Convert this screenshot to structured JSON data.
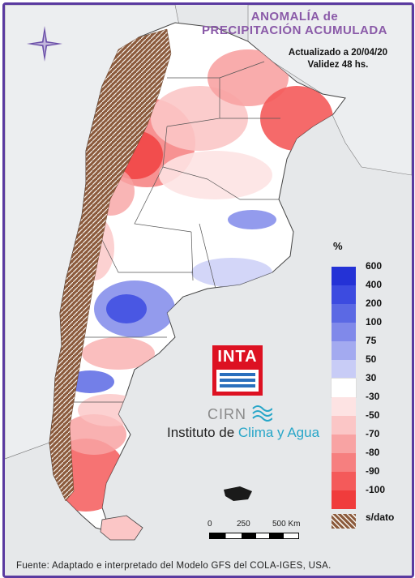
{
  "title": "ANOMALÍA de\nPRECIPITACIÓN ACUMULADA",
  "title_line1": "ANOMALÍA de",
  "title_line2": "PRECIPITACIÓN ACUMULADA",
  "updated": "Actualizado a 20/04/20",
  "validity": "Validez 48 hs.",
  "legend": {
    "unit": "%",
    "items": [
      {
        "label": "600",
        "color": "#2432d6"
      },
      {
        "label": "400",
        "color": "#3c4be0"
      },
      {
        "label": "200",
        "color": "#5b69e4"
      },
      {
        "label": "100",
        "color": "#8089ea"
      },
      {
        "label": "75",
        "color": "#a3aaf0"
      },
      {
        "label": "50",
        "color": "#c8ccf6"
      },
      {
        "label": "30",
        "color": "#ffffff"
      },
      {
        "label": "-30",
        "color": "#fde3e3"
      },
      {
        "label": "-50",
        "color": "#fbc6c6"
      },
      {
        "label": "-70",
        "color": "#f8a3a3"
      },
      {
        "label": "-80",
        "color": "#f67f7f"
      },
      {
        "label": "-90",
        "color": "#f45a5a"
      },
      {
        "label": "-100",
        "color": "#f03c3c"
      },
      {
        "label": "s/dato",
        "color": "#8b5a3c"
      }
    ]
  },
  "logos": {
    "inta": "INTA",
    "cirn": "CIRN",
    "institute_a": "Instituto de ",
    "institute_b": "Clima y Agua"
  },
  "scale": {
    "l0": "0",
    "l1": "250",
    "l2": "500 Km"
  },
  "source": "Fuente: Adaptado e interpretado del Modelo GFS del COLA-IGES, USA."
}
